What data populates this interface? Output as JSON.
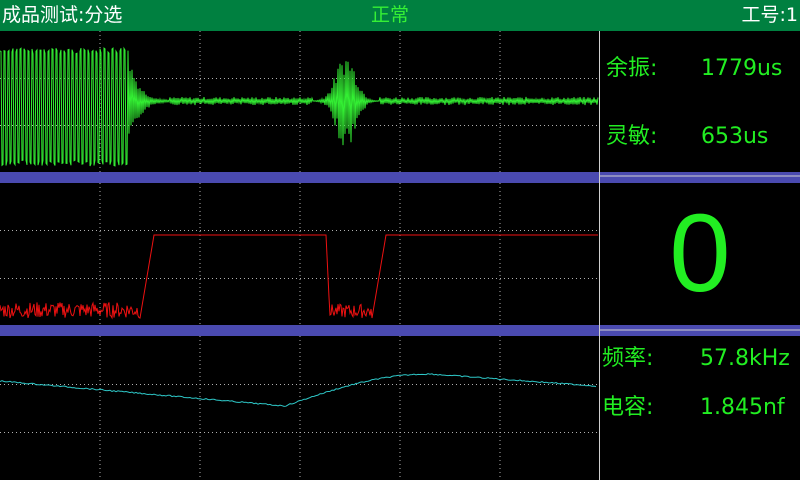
{
  "header": {
    "title": "成品测试:分选",
    "status": "正常",
    "station_label": "工号:1"
  },
  "readouts": {
    "ring": {
      "label": "余振:",
      "value": "1779us"
    },
    "sensitivity": {
      "label": "灵敏:",
      "value": "653us"
    },
    "count": "0",
    "frequency": {
      "label": "频率:",
      "value": "57.8kHz"
    },
    "capacitance": {
      "label": "电容:",
      "value": "1.845nf"
    }
  },
  "colors": {
    "header_bg": "#008040",
    "divider": "#4a4ab0",
    "grid": "#b0b0b0",
    "trace_echo": "#33ee33",
    "trace_pulse": "#ee1111",
    "trace_slow": "#2ec8c8",
    "readout": "#22ee22"
  }
}
